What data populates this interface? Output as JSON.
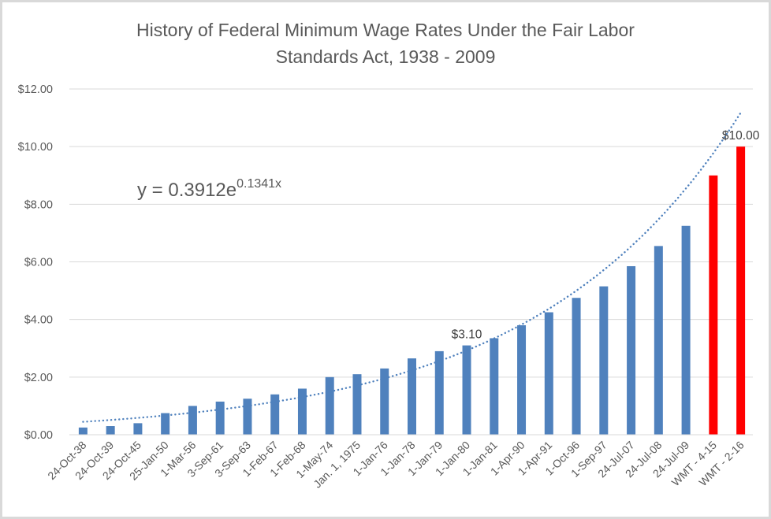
{
  "chart_data": {
    "type": "bar",
    "title_lines": [
      "History of Federal Minimum Wage Rates Under the Fair Labor",
      "Standards Act, 1938 - 2009"
    ],
    "xlabel": "",
    "ylabel": "",
    "ylim": [
      0,
      12
    ],
    "yticks": [
      0,
      2,
      4,
      6,
      8,
      10,
      12
    ],
    "ytick_labels": [
      "$0.00",
      "$2.00",
      "$4.00",
      "$6.00",
      "$8.00",
      "$10.00",
      "$12.00"
    ],
    "grid": true,
    "categories": [
      "24-Oct-38",
      "24-Oct-39",
      "24-Oct-45",
      "25-Jan-50",
      "1-Mar-56",
      "3-Sep-61",
      "3-Sep-63",
      "1-Feb-67",
      "1-Feb-68",
      "1-May-74",
      "Jan. 1, 1975",
      "1-Jan-76",
      "1-Jan-78",
      "1-Jan-79",
      "1-Jan-80",
      "1-Jan-81",
      "1-Apr-90",
      "1-Apr-91",
      "1-Oct-96",
      "1-Sep-97",
      "24-Jul-07",
      "24-Jul-08",
      "24-Jul-09",
      "WMT - 4-15",
      "WMT - 2-16"
    ],
    "values": [
      0.25,
      0.3,
      0.4,
      0.75,
      1.0,
      1.15,
      1.25,
      1.4,
      1.6,
      2.0,
      2.1,
      2.3,
      2.65,
      2.9,
      3.1,
      3.35,
      3.8,
      4.25,
      4.75,
      5.15,
      5.85,
      6.55,
      7.25,
      9.0,
      10.0
    ],
    "bar_colors": [
      "#4f81bd",
      "#4f81bd",
      "#4f81bd",
      "#4f81bd",
      "#4f81bd",
      "#4f81bd",
      "#4f81bd",
      "#4f81bd",
      "#4f81bd",
      "#4f81bd",
      "#4f81bd",
      "#4f81bd",
      "#4f81bd",
      "#4f81bd",
      "#4f81bd",
      "#4f81bd",
      "#4f81bd",
      "#4f81bd",
      "#4f81bd",
      "#4f81bd",
      "#4f81bd",
      "#4f81bd",
      "#4f81bd",
      "#ff0000",
      "#ff0000"
    ],
    "data_labels": [
      {
        "category_index": 14,
        "text": "$3.10"
      },
      {
        "category_index": 24,
        "text": "$10.00"
      }
    ],
    "trendline": {
      "type": "exponential",
      "a": 0.3912,
      "b": 0.1341,
      "color": "#4f81bd",
      "style": "dotted",
      "equation": {
        "base": "y = 0.3912e",
        "exponent": "0.1341x"
      }
    },
    "legend": "none"
  }
}
